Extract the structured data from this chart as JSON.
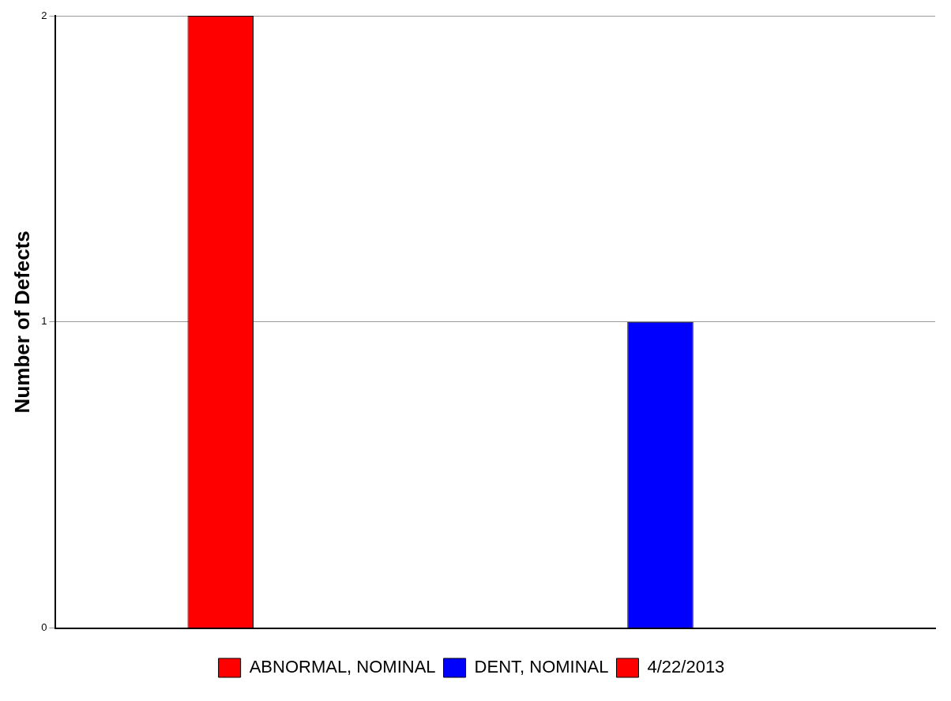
{
  "chart_data": {
    "type": "bar",
    "ylabel": "Number of Defects",
    "categories": [
      null,
      null
    ],
    "series": [
      {
        "name": "ABNORMAL, NOMINAL",
        "color": "#ff0000",
        "values": [
          2,
          null
        ]
      },
      {
        "name": "DENT, NOMINAL",
        "color": "#0000ff",
        "values": [
          null,
          1
        ]
      },
      {
        "name": "4/22/2013",
        "color": "#ff0000",
        "values": [
          0,
          0
        ]
      }
    ],
    "ylim": [
      0,
      2
    ],
    "yticks": [
      0,
      1,
      2
    ],
    "grid": "y",
    "legend": "bottom"
  }
}
